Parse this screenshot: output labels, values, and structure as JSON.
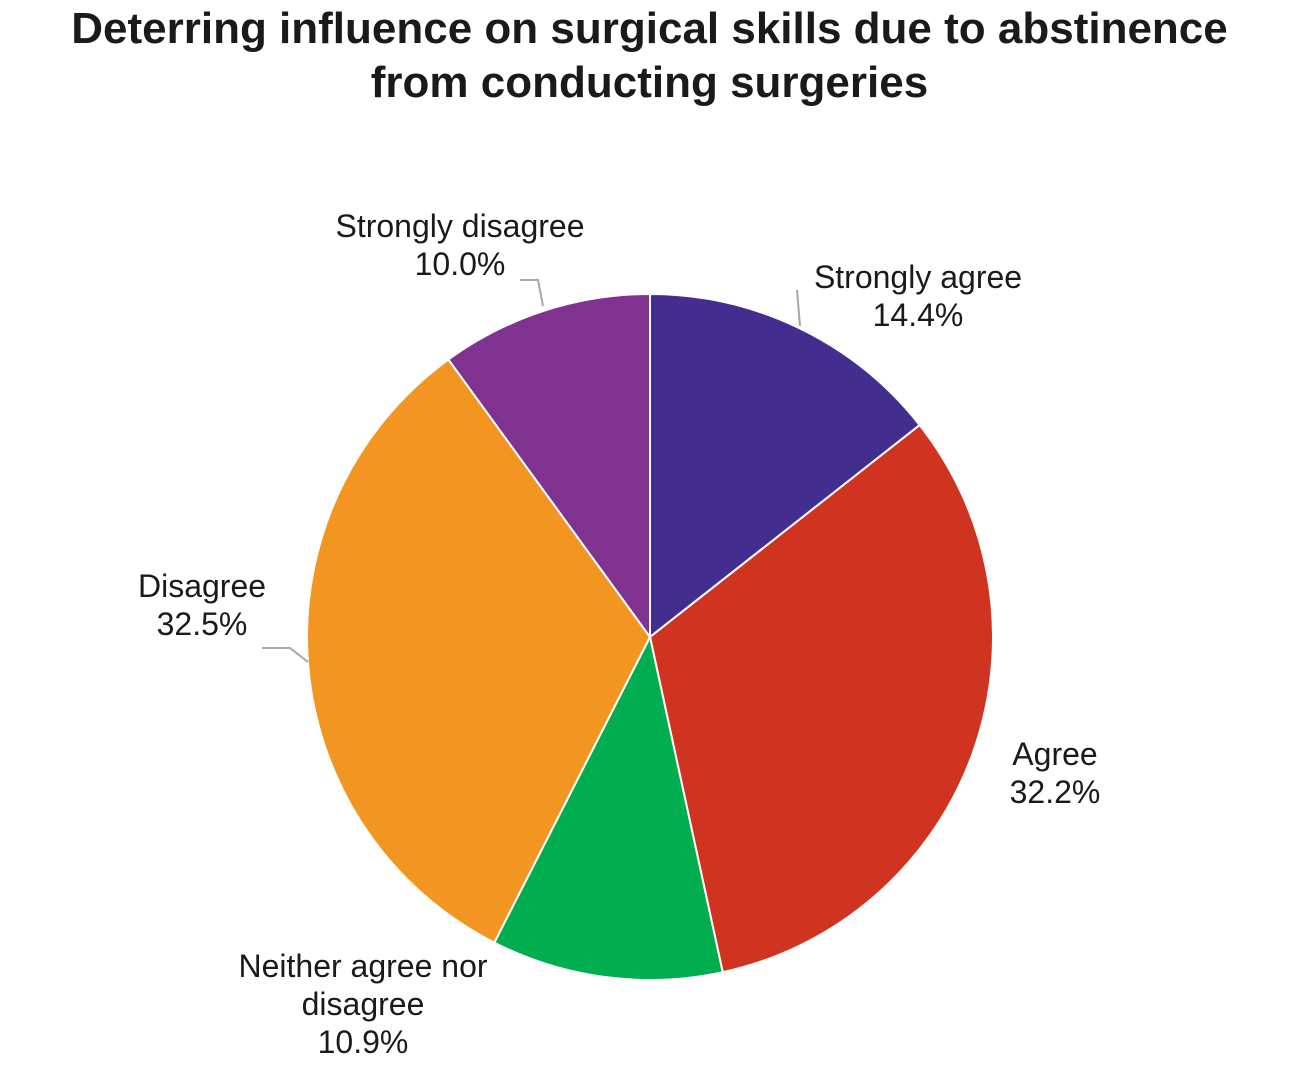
{
  "chart_data": {
    "type": "pie",
    "title_lines": [
      "Deterring influence on surgical skills due to abstinence",
      "from conducting surgeries"
    ],
    "slices": [
      {
        "name": "Strongly agree",
        "label_lines": [
          "Strongly agree"
        ],
        "value": 14.4,
        "value_label": "14.4%",
        "color": "#432e8f"
      },
      {
        "name": "Agree",
        "label_lines": [
          "Agree"
        ],
        "value": 32.2,
        "value_label": "32.2%",
        "color": "#d13321"
      },
      {
        "name": "Neither agree nor disagree",
        "label_lines": [
          "Neither agree nor",
          "disagree"
        ],
        "value": 10.9,
        "value_label": "10.9%",
        "color": "#00ad4f"
      },
      {
        "name": "Disagree",
        "label_lines": [
          "Disagree"
        ],
        "value": 32.5,
        "value_label": "32.5%",
        "color": "#f39521"
      },
      {
        "name": "Strongly disagree",
        "label_lines": [
          "Strongly disagree"
        ],
        "value": 10.0,
        "value_label": "10.0%",
        "color": "#7f3290"
      }
    ],
    "start_angle_deg": 0,
    "direction": "clockwise",
    "legend": "none"
  }
}
